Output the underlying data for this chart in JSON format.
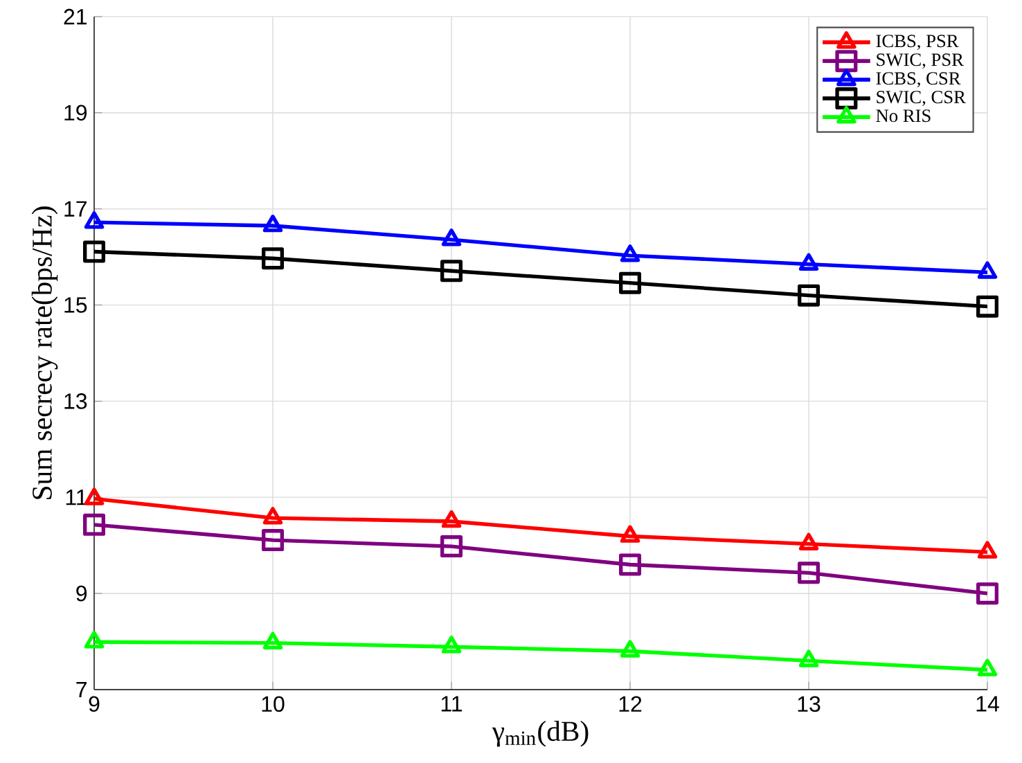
{
  "chart_data": {
    "type": "line",
    "xlabel": "γ$_{min}$(dB)",
    "ylabel": "Sum secrecy rate(bps/Hz)",
    "x": [
      9,
      10,
      11,
      12,
      13,
      14
    ],
    "series": [
      {
        "name": "ICBS, PSR",
        "color": "#ff0000",
        "marker": "triangle",
        "values": [
          10.97,
          10.57,
          10.5,
          10.19,
          10.03,
          9.86
        ]
      },
      {
        "name": "SWIC, PSR",
        "color": "#800080",
        "marker": "square",
        "values": [
          10.43,
          10.11,
          9.98,
          9.6,
          9.43,
          9.0
        ]
      },
      {
        "name": "ICBS, CSR",
        "color": "#0000ff",
        "marker": "triangle",
        "values": [
          16.72,
          16.65,
          16.36,
          16.03,
          15.85,
          15.68
        ]
      },
      {
        "name": "SWIC, CSR",
        "color": "#000000",
        "marker": "square",
        "values": [
          16.11,
          15.97,
          15.71,
          15.46,
          15.2,
          14.97
        ]
      },
      {
        "name": "No RIS",
        "color": "#00ff00",
        "marker": "triangle",
        "values": [
          7.99,
          7.97,
          7.89,
          7.8,
          7.6,
          7.41
        ]
      }
    ],
    "xlim": [
      9,
      14
    ],
    "ylim": [
      7,
      21
    ],
    "xticks": [
      9,
      10,
      11,
      12,
      13,
      14
    ],
    "yticks": [
      7,
      9,
      11,
      13,
      15,
      17,
      19,
      21
    ],
    "grid": true,
    "legend": "top right",
    "line_style": "solid"
  }
}
